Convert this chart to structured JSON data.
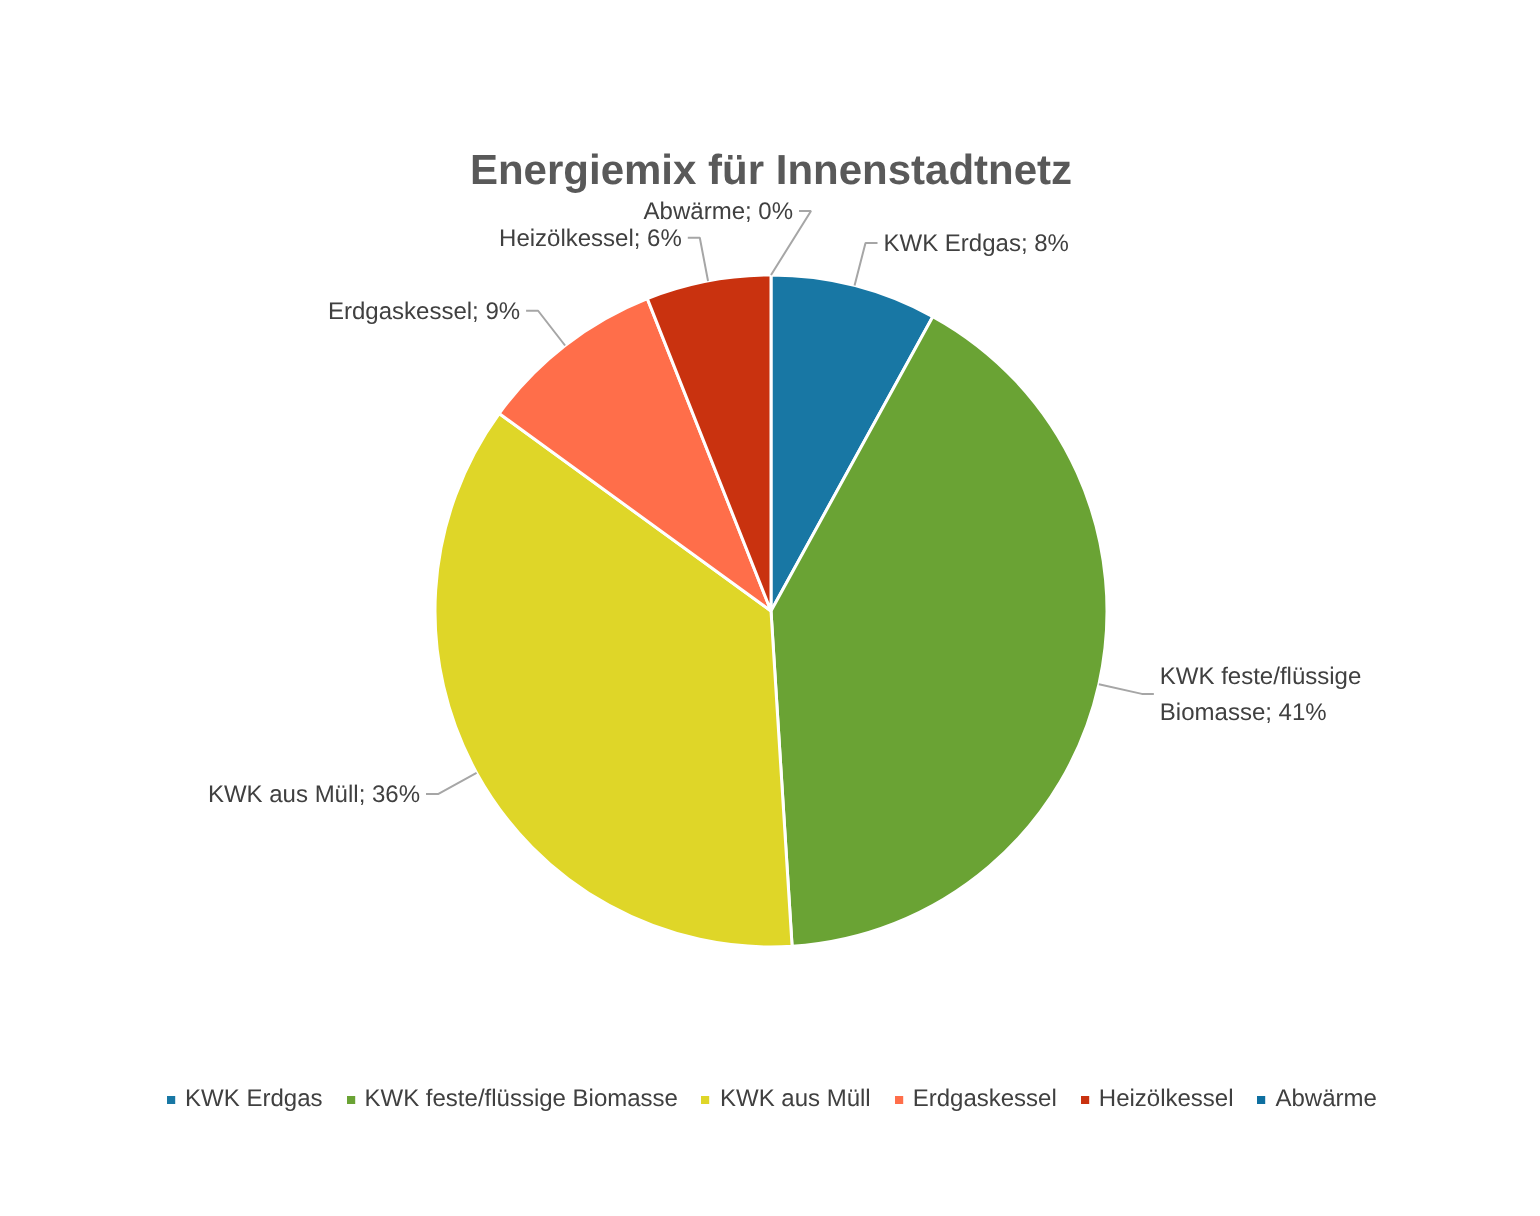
{
  "chart_data": {
    "type": "pie",
    "title": "Energiemix für Innenstadtnetz",
    "categories": [
      "KWK Erdgas",
      "KWK feste/flüssige Biomasse",
      "KWK aus Müll",
      "Erdgaskessel",
      "Heizölkessel",
      "Abwärme"
    ],
    "values": [
      8,
      41,
      36,
      9,
      6,
      0
    ],
    "colors": [
      "#1877a4",
      "#6aa334",
      "#dfd628",
      "#ff6e4a",
      "#c9320f",
      "#0e6fa0"
    ],
    "value_labels": [
      "KWK Erdgas; 8%",
      "KWK feste/flüssige Biomasse; 41%",
      "KWK aus Müll; 36%",
      "Erdgaskessel; 9%",
      "Heizölkessel; 6%",
      "Abwärme; 0%"
    ],
    "legend": "bottom"
  }
}
